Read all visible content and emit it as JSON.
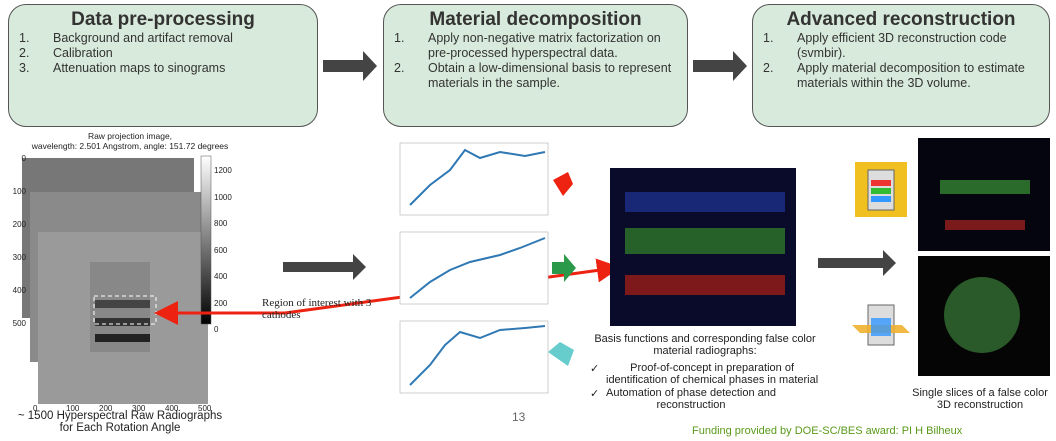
{
  "steps": [
    {
      "title": "Data pre-processing",
      "items": [
        {
          "num": "1.",
          "text": "Background and artifact removal"
        },
        {
          "num": "2.",
          "text": "Calibration"
        },
        {
          "num": "3.",
          "text": "Attenuation maps to sinograms"
        }
      ]
    },
    {
      "title": "Material decomposition",
      "items": [
        {
          "num": "1.",
          "text": "Apply non-negative matrix factorization on pre-processed hyperspectral data."
        },
        {
          "num": "2.",
          "text": "Obtain a low-dimensional basis to represent materials in the sample."
        }
      ]
    },
    {
      "title": "Advanced reconstruction",
      "items": [
        {
          "num": "1.",
          "text": "Apply efficient 3D reconstruction code (svmbir)."
        },
        {
          "num": "2.",
          "text": "Apply material decomposition to estimate materials within the 3D volume."
        }
      ]
    }
  ],
  "image": {
    "title": "Raw projection image,\nwavelength: 2.501 Angstrom, angle: 151.72 degrees",
    "yticks": [
      "0",
      "100",
      "200",
      "300",
      "400",
      "500"
    ],
    "xticks": [
      "0",
      "100",
      "200",
      "300",
      "400",
      "500"
    ],
    "colorbar_ticks": [
      "1200",
      "1000",
      "800",
      "600",
      "400",
      "200",
      "0"
    ],
    "caption": "~ 1500 Hyperspectral Raw Radiographs\nfor Each Rotation Angle"
  },
  "roi_label": "Region of interest with 3\ncathodes",
  "page_number": "13",
  "basis": {
    "heading": "Basis functions and corresponding false color\nmaterial radiographs:",
    "bullets": [
      {
        "mark": "✓",
        "text": "Proof-of-concept in preparation of\nidentification of chemical phases in material"
      },
      {
        "mark": "✓",
        "text": "Automation of phase detection and\nreconstruction"
      }
    ]
  },
  "recon_caption": "Single slices of a false color\n3D reconstruction",
  "funding": "Funding provided by DOE-SC/BES award: PI H Bilheux"
}
